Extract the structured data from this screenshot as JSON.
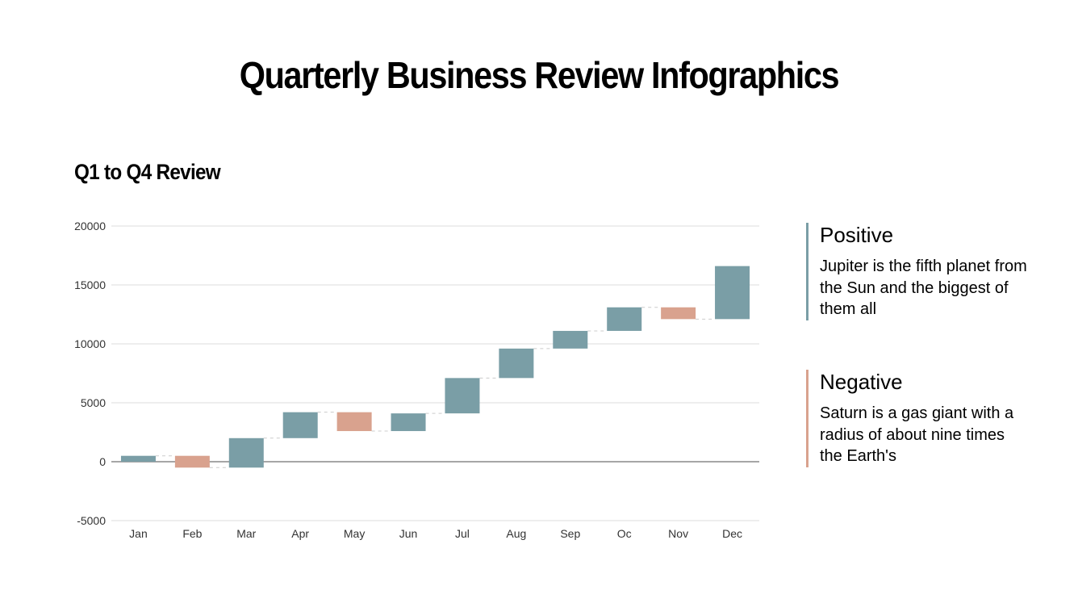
{
  "title": "Quarterly Business Review Infographics",
  "chart_data": {
    "type": "waterfall",
    "title": "Q1 to Q4 Review",
    "categories": [
      "Jan",
      "Feb",
      "Mar",
      "Apr",
      "May",
      "Jun",
      "Jul",
      "Aug",
      "Sep",
      "Oc",
      "Nov",
      "Dec"
    ],
    "values": [
      500,
      -1000,
      2500,
      2200,
      -1600,
      1500,
      3000,
      2500,
      1500,
      2000,
      -1000,
      4500
    ],
    "cumulative": [
      500,
      -500,
      2000,
      4200,
      2600,
      4100,
      7100,
      9600,
      11100,
      13100,
      12100,
      16600
    ],
    "ylim": [
      -5000,
      20000
    ],
    "yticks": [
      20000,
      15000,
      10000,
      5000,
      0,
      -5000
    ],
    "ytick_labels": [
      "20000",
      "15000",
      "10000",
      "5000",
      "0",
      "-5000"
    ],
    "grid": true,
    "colors": {
      "positive": "#7a9ea6",
      "negative": "#d9a28e"
    }
  },
  "legend": {
    "positive": {
      "title": "Positive",
      "text": "Jupiter is the fifth planet from the Sun and the biggest of them all"
    },
    "negative": {
      "title": "Negative",
      "text": "Saturn is a gas giant with a radius of about nine times the Earth's"
    }
  }
}
